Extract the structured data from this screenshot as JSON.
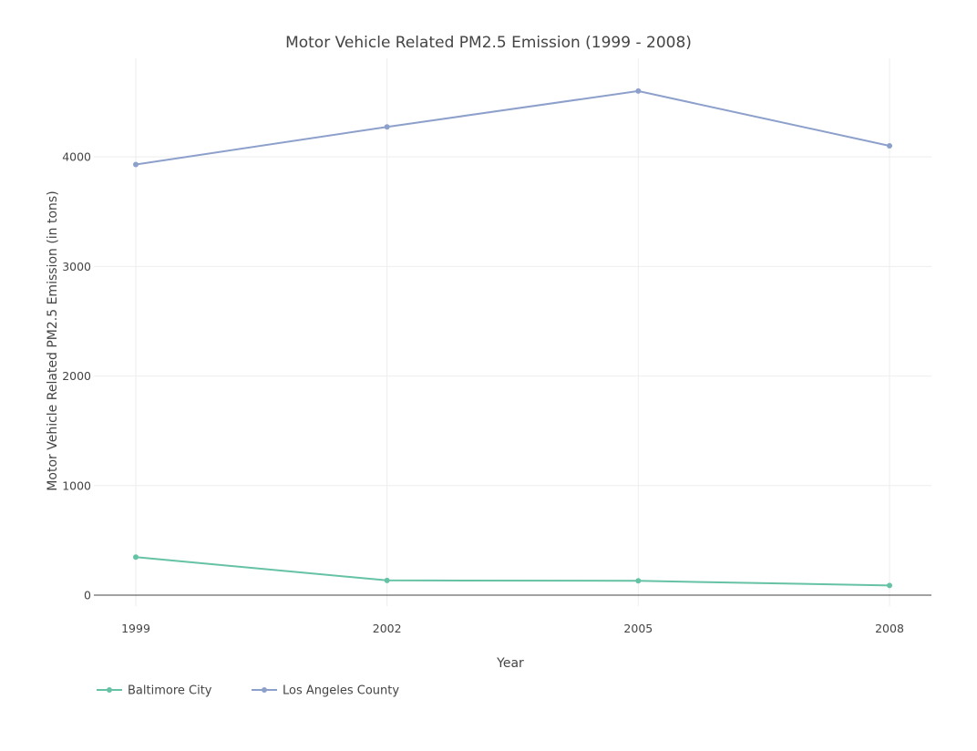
{
  "chart_data": {
    "type": "line",
    "title": "Motor Vehicle Related PM2.5 Emission (1999 - 2008)",
    "xlabel": "Year",
    "ylabel": "Motor Vehicle Related PM2.5 Emission (in tons)",
    "x": [
      1999,
      2002,
      2005,
      2008
    ],
    "xticks": [
      "1999",
      "2002",
      "2005",
      "2008"
    ],
    "yticks": [
      0,
      1000,
      2000,
      3000,
      4000
    ],
    "ylim": [
      -100,
      4900
    ],
    "grid": true,
    "legend": "bottom-left",
    "series": [
      {
        "name": "Baltimore City",
        "values": [
          346.82,
          134.31,
          130.43,
          88.28
        ],
        "color": "#66c2a5"
      },
      {
        "name": "Los Angeles County",
        "values": [
          3931.12,
          4274.03,
          4601.41,
          4101.32
        ],
        "color": "#8da0cb"
      }
    ]
  }
}
